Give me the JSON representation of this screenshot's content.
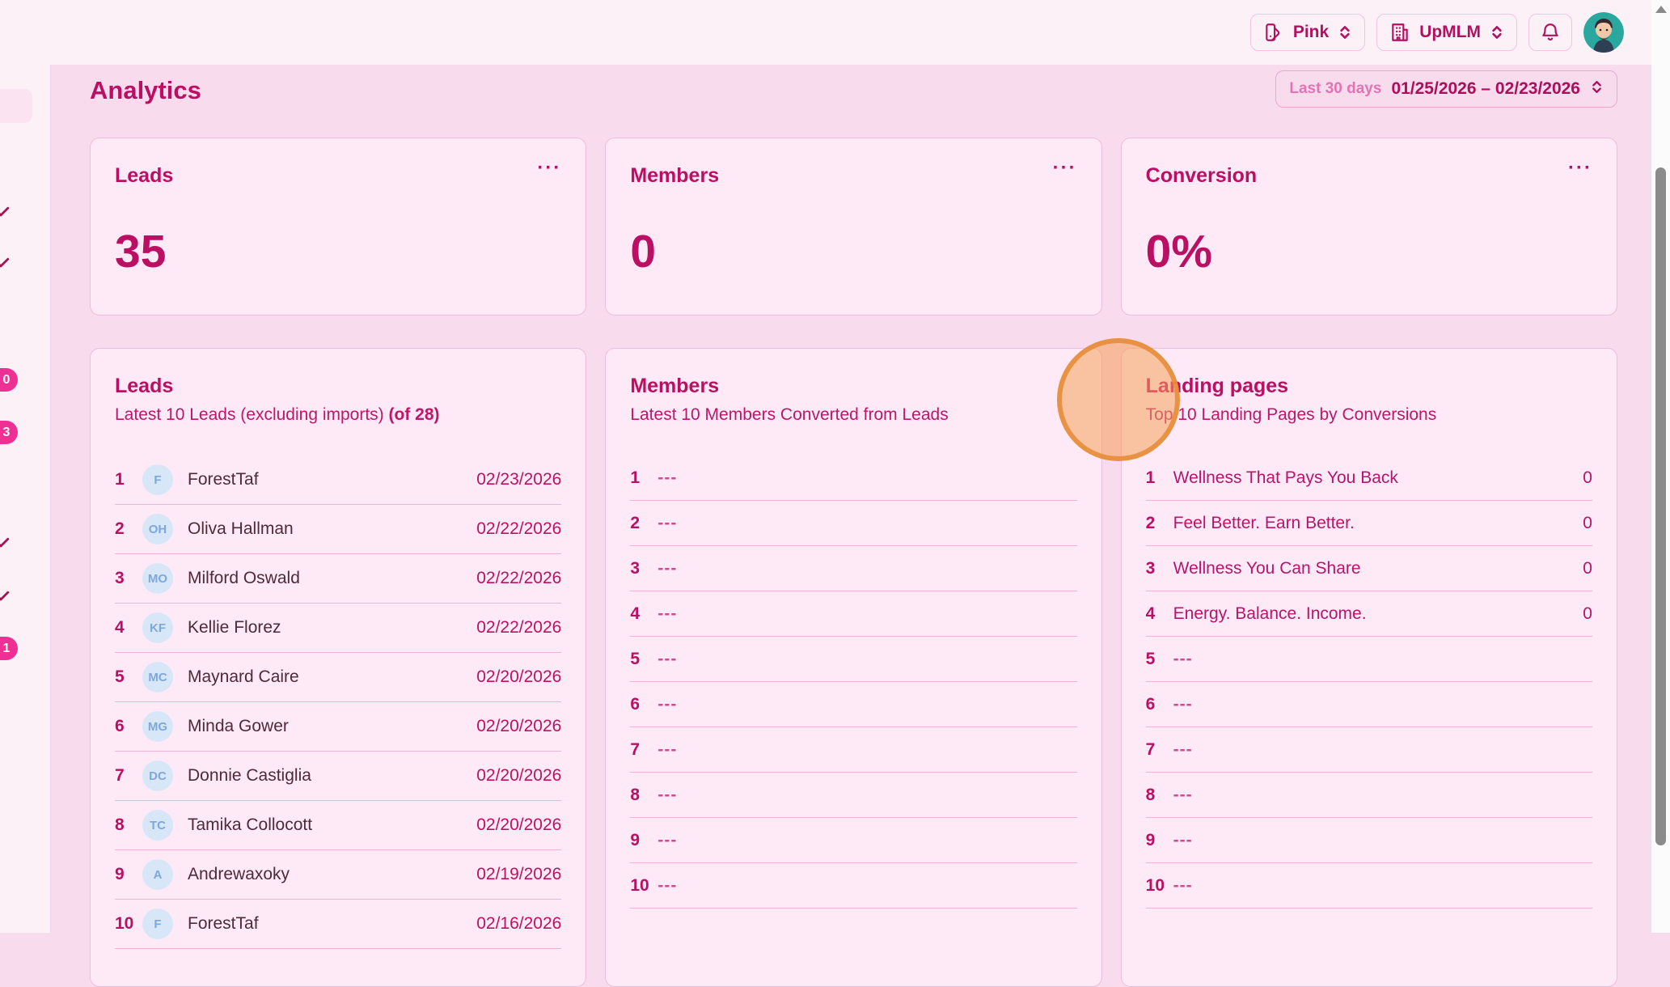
{
  "topbar": {
    "theme_selector": {
      "label": "Pink"
    },
    "org_selector": {
      "label": "UpMLM"
    }
  },
  "header": {
    "title": "Analytics",
    "date_filter": {
      "preset": "Last 30 days",
      "range": "01/25/2026 – 02/23/2026"
    }
  },
  "stat_cards": [
    {
      "title": "Leads",
      "value": "35",
      "menu": "···"
    },
    {
      "title": "Members",
      "value": "0",
      "menu": "···"
    },
    {
      "title": "Conversion",
      "value": "0%",
      "menu": "···"
    }
  ],
  "lists": {
    "leads": {
      "title": "Leads",
      "subtitle": "Latest 10 Leads (excluding imports)",
      "subtitle_bold": "(of 28)",
      "rows": [
        {
          "rank": "1",
          "initials": "F",
          "name": "ForestTaf",
          "date": "02/23/2026"
        },
        {
          "rank": "2",
          "initials": "OH",
          "name": "Oliva Hallman",
          "date": "02/22/2026"
        },
        {
          "rank": "3",
          "initials": "MO",
          "name": "Milford Oswald",
          "date": "02/22/2026"
        },
        {
          "rank": "4",
          "initials": "KF",
          "name": "Kellie Florez",
          "date": "02/22/2026"
        },
        {
          "rank": "5",
          "initials": "MC",
          "name": "Maynard Caire",
          "date": "02/20/2026"
        },
        {
          "rank": "6",
          "initials": "MG",
          "name": "Minda Gower",
          "date": "02/20/2026"
        },
        {
          "rank": "7",
          "initials": "DC",
          "name": "Donnie Castiglia",
          "date": "02/20/2026"
        },
        {
          "rank": "8",
          "initials": "TC",
          "name": "Tamika Collocott",
          "date": "02/20/2026"
        },
        {
          "rank": "9",
          "initials": "A",
          "name": "Andrewaxoky",
          "date": "02/19/2026"
        },
        {
          "rank": "10",
          "initials": "F",
          "name": "ForestTaf",
          "date": "02/16/2026"
        }
      ]
    },
    "members": {
      "title": "Members",
      "subtitle": "Latest 10 Members Converted from Leads",
      "placeholder": "---",
      "rows": [
        {
          "rank": "1"
        },
        {
          "rank": "2"
        },
        {
          "rank": "3"
        },
        {
          "rank": "4"
        },
        {
          "rank": "5"
        },
        {
          "rank": "6"
        },
        {
          "rank": "7"
        },
        {
          "rank": "8"
        },
        {
          "rank": "9"
        },
        {
          "rank": "10"
        }
      ]
    },
    "landing_pages": {
      "title": "Landing pages",
      "subtitle": "Top 10 Landing Pages by Conversions",
      "placeholder": "---",
      "rows": [
        {
          "rank": "1",
          "name": "Wellness That Pays You Back",
          "value": "0"
        },
        {
          "rank": "2",
          "name": "Feel Better. Earn Better.",
          "value": "0"
        },
        {
          "rank": "3",
          "name": "Wellness You Can Share",
          "value": "0"
        },
        {
          "rank": "4",
          "name": "Energy. Balance. Income.",
          "value": "0"
        },
        {
          "rank": "5"
        },
        {
          "rank": "6"
        },
        {
          "rank": "7"
        },
        {
          "rank": "8"
        },
        {
          "rank": "9"
        },
        {
          "rank": "10"
        }
      ]
    }
  },
  "sidebar": {
    "badges": [
      "0",
      "3",
      "1"
    ]
  },
  "colors": {
    "accent": "#ba0f62",
    "page_background": "#f8dcee",
    "panel_background": "#fdf1f8",
    "card_background": "#fdeaf6",
    "badge": "#ee2f94",
    "click_indicator": "#e58933"
  }
}
